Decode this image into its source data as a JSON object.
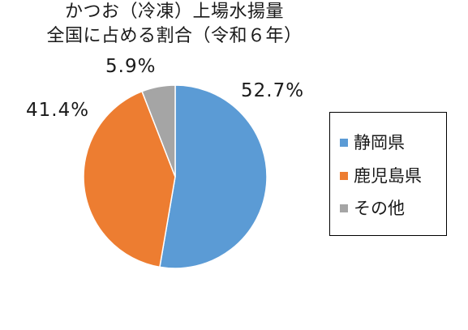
{
  "chart_data": {
    "type": "pie",
    "title_line1": "かつお（冷凍）上場水揚量",
    "title_line2": "全国に占める割合（令和６年）",
    "categories": [
      "静岡県",
      "鹿児島県",
      "その他"
    ],
    "values": [
      52.7,
      41.4,
      5.9
    ],
    "labels": [
      "52.7%",
      "41.4%",
      "5.9%"
    ],
    "colors": [
      "#5b9bd5",
      "#ed7d31",
      "#a5a5a5"
    ],
    "start_angle_deg": 0,
    "direction": "clockwise",
    "legend_position": "right"
  }
}
